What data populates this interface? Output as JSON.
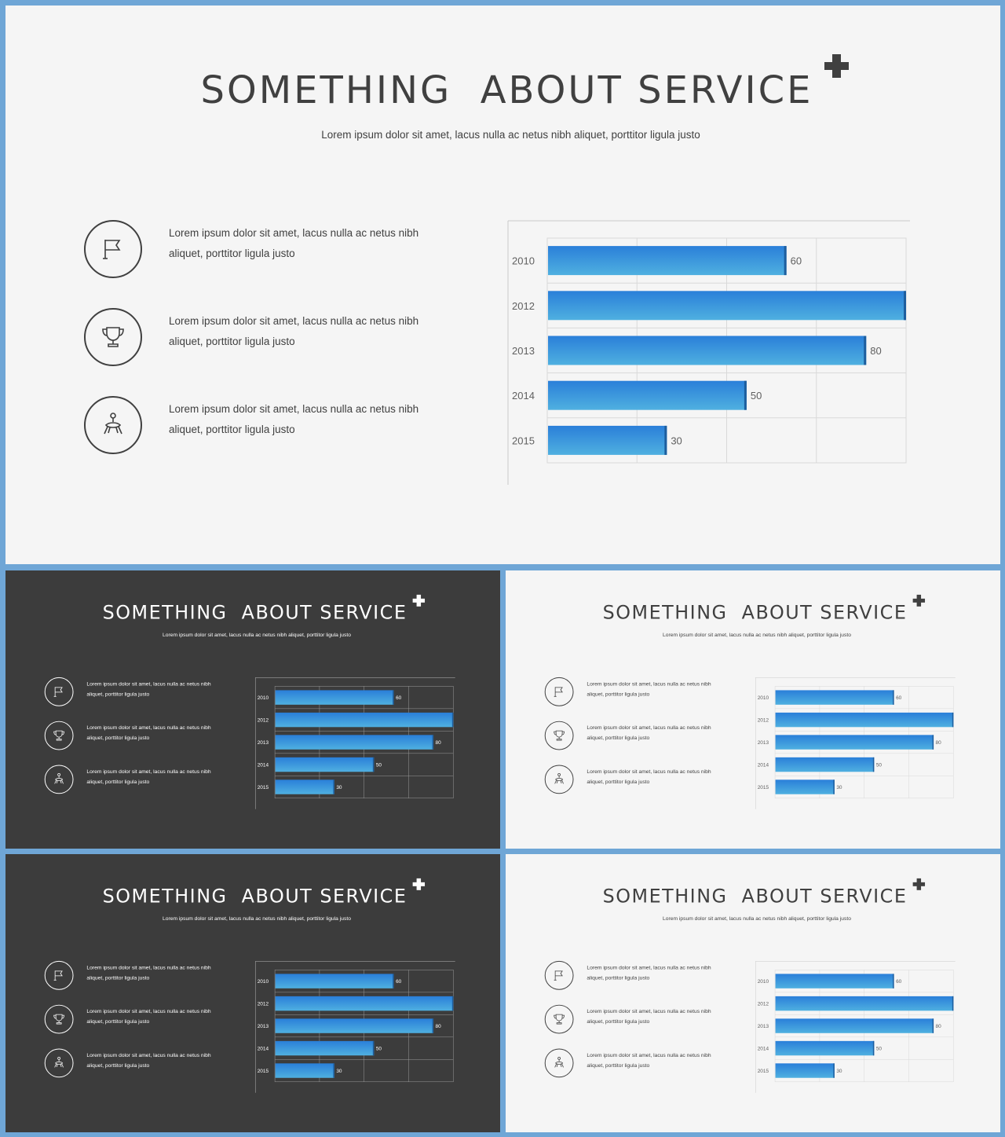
{
  "slides": [
    {
      "theme": "light"
    },
    {
      "theme": "dark"
    },
    {
      "theme": "light"
    },
    {
      "theme": "dark"
    },
    {
      "theme": "light"
    }
  ],
  "content": {
    "title": "SOMETHING  ABOUT SERVICE",
    "subtitle": "Lorem ipsum dolor sit amet, lacus nulla ac netus nibh aliquet, porttitor ligula justo",
    "features": [
      {
        "icon": "flag-icon",
        "text": "Lorem ipsum dolor sit amet, lacus nulla ac netus nibh aliquet, porttitor ligula justo"
      },
      {
        "icon": "trophy-icon",
        "text": "Lorem ipsum dolor sit amet, lacus nulla ac netus nibh aliquet, porttitor ligula justo"
      },
      {
        "icon": "person-icon",
        "text": "Lorem ipsum dolor sit amet, lacus nulla ac netus nibh aliquet, porttitor ligula justo"
      }
    ],
    "plus_icon": "plus-icon"
  },
  "colors": {
    "frame": "#6fa6d6",
    "light_bg": "#f5f5f5",
    "dark_bg": "#3c3c3c",
    "bar_top": "#2a7fd9",
    "bar_bottom": "#4fb0e0",
    "bar_end": "#1d5e9e"
  },
  "chart_data": {
    "type": "bar",
    "orientation": "horizontal",
    "categories": [
      "2010",
      "2012",
      "2013",
      "2014",
      "2015"
    ],
    "values": [
      60,
      90,
      80,
      50,
      30
    ],
    "xlim": [
      0,
      90
    ],
    "grid": true,
    "data_labels": true
  }
}
